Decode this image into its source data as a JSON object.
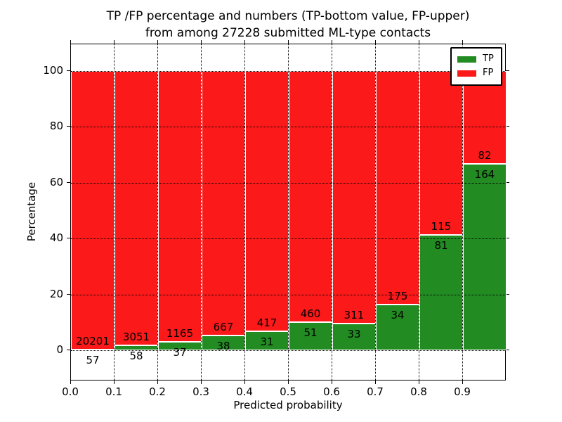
{
  "title": {
    "line1": "TP /FP percentage and numbers (TP-bottom value, FP-upper)",
    "line2": "from among 27228 submitted ML-type contacts"
  },
  "axes": {
    "xlabel": "Predicted probability",
    "ylabel": "Percentage",
    "xtick_labels": [
      "0.0",
      "0.1",
      "0.2",
      "0.3",
      "0.4",
      "0.5",
      "0.6",
      "0.7",
      "0.8",
      "0.9"
    ],
    "ytick_values": [
      0,
      20,
      40,
      60,
      80,
      100
    ]
  },
  "legend": {
    "items": [
      {
        "label": "TP",
        "color": "#228b22"
      },
      {
        "label": "FP",
        "color": "#fb1919"
      }
    ]
  },
  "colors": {
    "tp": "#228b22",
    "fp": "#fb1919",
    "bar_edge": "#ffffff",
    "grid": "#000000",
    "background": "#ffffff"
  },
  "chart_data": {
    "type": "bar",
    "stacked": true,
    "normalized_to_percent": true,
    "title": "TP /FP percentage and numbers (TP-bottom value, FP-upper) from among 27228 submitted ML-type contacts",
    "xlabel": "Predicted probability",
    "ylabel": "Percentage",
    "total_contacts": 27228,
    "bin_edges": [
      0.0,
      0.1,
      0.2,
      0.3,
      0.4,
      0.5,
      0.6,
      0.7,
      0.8,
      0.9,
      1.0
    ],
    "categories": [
      "0.0-0.1",
      "0.1-0.2",
      "0.2-0.3",
      "0.3-0.4",
      "0.4-0.5",
      "0.5-0.6",
      "0.6-0.7",
      "0.7-0.8",
      "0.8-0.9",
      "0.9-1.0"
    ],
    "series": [
      {
        "name": "TP",
        "color": "#228b22",
        "counts": [
          57,
          58,
          37,
          38,
          31,
          51,
          33,
          34,
          81,
          164
        ]
      },
      {
        "name": "FP",
        "color": "#fb1919",
        "counts": [
          20201,
          3051,
          1165,
          667,
          417,
          460,
          311,
          175,
          115,
          82
        ]
      }
    ],
    "tp_percent": [
      0.28,
      1.87,
      3.08,
      5.39,
      6.92,
      9.98,
      9.59,
      16.27,
      41.33,
      66.67
    ],
    "ylim": [
      -11.1,
      109.6
    ],
    "xlim": [
      0.0,
      1.0
    ],
    "grid": true,
    "grid_style": "dotted",
    "legend_position": "upper right"
  }
}
